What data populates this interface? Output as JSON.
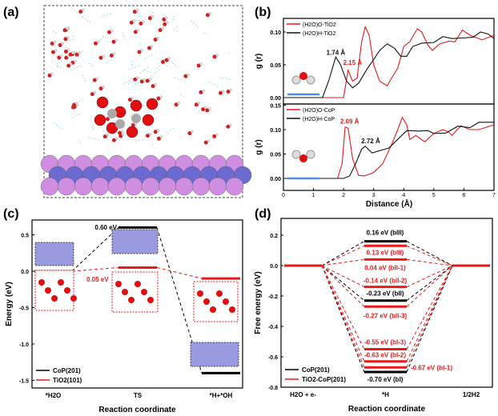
{
  "panel_labels": [
    "(a)",
    "(b)",
    "(c)",
    "(d)"
  ],
  "chart_data": [
    {
      "panel": "(a)",
      "type": "image",
      "description_label": ""
    },
    {
      "panel": "(b)",
      "type": "line",
      "xlabel": "Distance (Å)",
      "ylabel": "g (r)",
      "xlim": [
        0,
        7
      ],
      "xticks": [
        "0",
        "1",
        "2",
        "3",
        "4",
        "5",
        "6",
        "7"
      ],
      "subplots": [
        {
          "ylim": [
            0,
            0.12
          ],
          "yticks": [
            "0.00",
            "0.05",
            "0.10"
          ],
          "series": [
            {
              "name": "(H2O)O-TiO2",
              "color": "#e8191b",
              "x": [
                0,
                1.8,
                2.0,
                2.15,
                2.3,
                2.45,
                2.6,
                2.72,
                2.85,
                3.0,
                3.2,
                3.45,
                3.6,
                3.8,
                4.0,
                4.2,
                4.45,
                4.6,
                4.8,
                4.95,
                5.2,
                5.5,
                5.7,
                5.95,
                6.2,
                6.5,
                6.6,
                7
              ],
              "y": [
                0,
                0,
                0,
                0.042,
                0.025,
                0.03,
                0.085,
                0.108,
                0.095,
                0.05,
                0.025,
                0.018,
                0.03,
                0.045,
                0.078,
                0.085,
                0.105,
                0.1,
                0.08,
                0.072,
                0.082,
                0.086,
                0.085,
                0.103,
                0.095,
                0.09,
                0.088,
                0.095
              ]
            },
            {
              "name": "(H2O)H-TiO2",
              "color": "#111111",
              "x": [
                0,
                1.3,
                1.5,
                1.74,
                1.9,
                2.1,
                2.3,
                2.5,
                2.8,
                3.0,
                3.2,
                3.45,
                3.7,
                3.9,
                4.1,
                4.3,
                4.6,
                5.0,
                5.3,
                5.6,
                6.0,
                6.3,
                6.55,
                6.8,
                7
              ],
              "y": [
                0,
                0,
                0.025,
                0.062,
                0.05,
                0.025,
                0.015,
                0.022,
                0.045,
                0.058,
                0.072,
                0.082,
                0.075,
                0.063,
                0.063,
                0.078,
                0.083,
                0.084,
                0.093,
                0.09,
                0.091,
                0.092,
                0.1,
                0.097,
                0.09
              ]
            }
          ],
          "annotations": [
            {
              "text": "1.74 Å",
              "color": "#111111",
              "x": 1.74,
              "y": 0.065
            },
            {
              "text": "2.15 Å",
              "color": "#e8191b",
              "x": 2.3,
              "y": 0.05
            }
          ]
        },
        {
          "ylim": [
            -0.025,
            0.15
          ],
          "yticks": [
            "0.00",
            "0.05",
            "0.10",
            "0.15"
          ],
          "series": [
            {
              "name": "(H2O)O-CoP",
              "color": "#e8191b",
              "x": [
                0,
                1.8,
                1.95,
                2.05,
                2.15,
                2.3,
                2.5,
                2.7,
                3.0,
                3.3,
                3.6,
                3.8,
                3.95,
                4.1,
                4.2,
                4.4,
                4.7,
                5.0,
                5.3,
                5.5,
                5.6,
                5.9,
                6.2,
                6.5,
                7
              ],
              "y": [
                0,
                0,
                0.03,
                0.105,
                0.103,
                0.04,
                0.006,
                0.005,
                0.012,
                0.03,
                0.07,
                0.1,
                0.125,
                0.11,
                0.08,
                0.088,
                0.075,
                0.092,
                0.1,
                0.095,
                0.088,
                0.108,
                0.1,
                0.1,
                0.11
              ]
            },
            {
              "name": "(H2O)H-CoP",
              "color": "#111111",
              "x": [
                0,
                2.0,
                2.2,
                2.4,
                2.6,
                2.72,
                2.85,
                2.95,
                3.2,
                3.5,
                3.8,
                4.1,
                4.5,
                4.8,
                5.0,
                5.4,
                5.8,
                6.2,
                6.5,
                7
              ],
              "y": [
                0,
                0,
                0.005,
                0.03,
                0.06,
                0.066,
                0.058,
                0.052,
                0.057,
                0.062,
                0.08,
                0.098,
                0.097,
                0.098,
                0.092,
                0.093,
                0.107,
                0.104,
                0.115,
                0.115
              ]
            }
          ],
          "annotations": [
            {
              "text": "2.09 Å",
              "color": "#e8191b",
              "x": 2.2,
              "y": 0.112
            },
            {
              "text": "2.72 Å",
              "color": "#111111",
              "x": 2.9,
              "y": 0.072
            }
          ]
        }
      ]
    },
    {
      "panel": "(c)",
      "type": "energy_diagram",
      "xlabel": "Reaction coordinate",
      "ylabel": "Energy (eV)",
      "ylim": [
        -1.6,
        0.68
      ],
      "yticks": [
        "0.5",
        "0.0",
        "-0.5",
        "-1.0",
        "-1.5"
      ],
      "categories": [
        "*H2O",
        "TS",
        "*H+*OH"
      ],
      "series": [
        {
          "name": "CoP(201)",
          "color": "#000000",
          "values": [
            0,
            0.6,
            -1.4
          ]
        },
        {
          "name": "TiO2(101)",
          "color": "#e8191b",
          "values": [
            0,
            0.05,
            -0.1
          ]
        }
      ],
      "annotations": [
        {
          "text": "0.60 eV",
          "color": "#000000"
        },
        {
          "text": "0.05 eV",
          "color": "#e8191b"
        }
      ],
      "legend": "bottom-left"
    },
    {
      "panel": "(d)",
      "type": "energy_diagram",
      "xlabel": "Reaction coordinate",
      "ylabel": "Free energy (eV)",
      "ylim": [
        -0.8,
        0.25
      ],
      "yticks": [
        "0.2",
        "0.0",
        "-0.2",
        "-0.4",
        "-0.6",
        "-0.8"
      ],
      "categories": [
        "H2O + e-",
        "*H",
        "1/2H2"
      ],
      "series": [
        {
          "name": "CoP(201)",
          "color": "#000000",
          "levels": [
            0.16,
            -0.23,
            -0.7
          ],
          "labels": [
            "0.16 eV (bIII)",
            "-0.23 eV (bII)",
            "-0.70 eV (bI)"
          ]
        },
        {
          "name": "TiO2-CoP(201)",
          "color": "#e8191b",
          "levels": [
            0.13,
            0.04,
            -0.14,
            -0.27,
            -0.55,
            -0.63,
            -0.67
          ],
          "labels": [
            "0.13 eV (bIII)",
            "0.04 eV (bII-1)",
            "-0.14 eV (bII-2)",
            "-0.27 eV (bII-3)",
            "-0.55 eV (bI-3)",
            "-0.63 eV (bI-2)",
            "-0.67 eV (bI-1)"
          ]
        }
      ],
      "legend": "bottom-left"
    }
  ]
}
